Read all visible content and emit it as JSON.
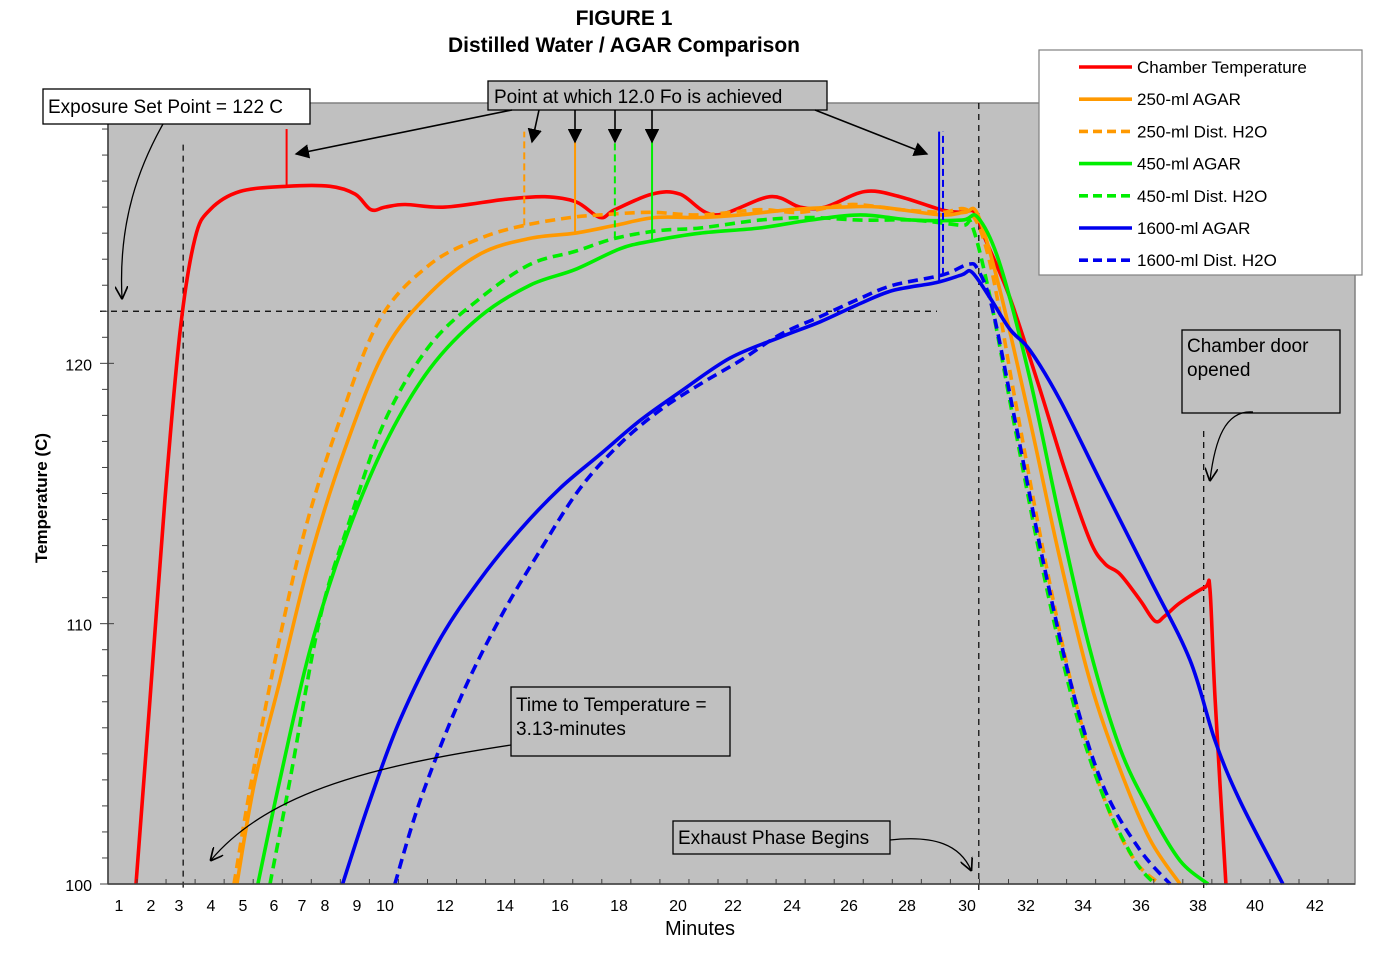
{
  "chart_data": {
    "type": "line",
    "title": "FIGURE 1",
    "subtitle": "Distilled Water / AGAR Comparison",
    "xlabel": "Minutes",
    "ylabel": "Temperature (C)",
    "xlim": [
      0.6,
      43.5
    ],
    "ylim": [
      100,
      130
    ],
    "x_tick_labels": [
      {
        "label": "1",
        "value": 1
      },
      {
        "label": "2",
        "value": 2
      },
      {
        "label": "3",
        "value": 3
      },
      {
        "label": "4",
        "value": 4
      },
      {
        "label": "5",
        "value": 5
      },
      {
        "label": "6",
        "value": 6
      },
      {
        "label": "7",
        "value": 7
      },
      {
        "label": "8",
        "value": 8
      },
      {
        "label": "9",
        "value": 9
      },
      {
        "label": "10",
        "value": 10
      },
      {
        "label": "12",
        "value": 12
      },
      {
        "label": "14",
        "value": 14
      },
      {
        "label": "16",
        "value": 16
      },
      {
        "label": "18",
        "value": 18
      },
      {
        "label": "20",
        "value": 20
      },
      {
        "label": "22",
        "value": 22
      },
      {
        "label": "24",
        "value": 24
      },
      {
        "label": "26",
        "value": 26
      },
      {
        "label": "28",
        "value": 28
      },
      {
        "label": "30",
        "value": 30
      },
      {
        "label": "32",
        "value": 32
      },
      {
        "label": "34",
        "value": 34
      },
      {
        "label": "36",
        "value": 36
      },
      {
        "label": "38",
        "value": 38
      },
      {
        "label": "40",
        "value": 40
      },
      {
        "label": "42",
        "value": 42
      }
    ],
    "y_tick_labels": [
      {
        "label": "100",
        "value": 100
      },
      {
        "label": "110",
        "value": 110
      },
      {
        "label": "120",
        "value": 120
      }
    ],
    "y_minor_tick_step": 1,
    "grid": false,
    "plot_background": "#c0c0c0",
    "legend_position": "top-right",
    "series": [
      {
        "name": "Chamber Temperature",
        "color": "#ff0000",
        "dash": false,
        "points": [
          [
            1.53,
            100
          ],
          [
            1.97,
            107.1
          ],
          [
            2.5,
            114.8
          ],
          [
            3.04,
            121.3
          ],
          [
            3.5,
            124.8
          ],
          [
            3.97,
            125.9
          ],
          [
            4.9,
            126.6
          ],
          [
            6.45,
            126.8
          ],
          [
            8.16,
            126.8
          ],
          [
            8.94,
            126.5
          ],
          [
            9.5,
            125.9
          ],
          [
            10,
            126.0
          ],
          [
            10.67,
            126.1
          ],
          [
            12,
            126.0
          ],
          [
            14,
            126.3
          ],
          [
            15.45,
            126.4
          ],
          [
            16.55,
            126.2
          ],
          [
            17.36,
            125.6
          ],
          [
            17.86,
            125.9
          ],
          [
            19.12,
            126.5
          ],
          [
            20.07,
            126.5
          ],
          [
            21.35,
            125.7
          ],
          [
            23.25,
            126.4
          ],
          [
            24.28,
            126.0
          ],
          [
            25.16,
            126.0
          ],
          [
            26.55,
            126.6
          ],
          [
            27.76,
            126.4
          ],
          [
            29.14,
            125.9
          ],
          [
            29.83,
            125.8
          ],
          [
            30.27,
            125.8
          ],
          [
            30.61,
            124.8
          ],
          [
            31.46,
            122.5
          ],
          [
            32.49,
            119.0
          ],
          [
            33.37,
            115.9
          ],
          [
            34.24,
            113.2
          ],
          [
            34.76,
            112.3
          ],
          [
            35.28,
            111.9
          ],
          [
            35.97,
            110.9
          ],
          [
            36.49,
            110.1
          ],
          [
            36.84,
            110.3
          ],
          [
            37.37,
            110.8
          ],
          [
            38.25,
            111.4
          ],
          [
            38.42,
            111.3
          ],
          [
            38.6,
            107.1
          ],
          [
            38.98,
            100
          ]
        ]
      },
      {
        "name": "250-ml AGAR",
        "color": "#ff9900",
        "dash": false,
        "points": [
          [
            4.81,
            100
          ],
          [
            5.39,
            104
          ],
          [
            6.21,
            107.8
          ],
          [
            7.35,
            112.5
          ],
          [
            8.62,
            116.7
          ],
          [
            10,
            120.5
          ],
          [
            11.5,
            122.7
          ],
          [
            13.17,
            124.2
          ],
          [
            14.91,
            124.8
          ],
          [
            16.51,
            125.0
          ],
          [
            17.86,
            125.3
          ],
          [
            19.22,
            125.6
          ],
          [
            20.8,
            125.6
          ],
          [
            22.24,
            125.7
          ],
          [
            23.93,
            125.9
          ],
          [
            25.68,
            126.0
          ],
          [
            27.07,
            126.0
          ],
          [
            29.14,
            125.7
          ],
          [
            29.93,
            125.8
          ],
          [
            30.37,
            125.7
          ],
          [
            31.12,
            122.8
          ],
          [
            32.14,
            117.8
          ],
          [
            33.19,
            112.5
          ],
          [
            34.24,
            107.8
          ],
          [
            35.28,
            104.4
          ],
          [
            36.32,
            101.7
          ],
          [
            37.37,
            100
          ]
        ]
      },
      {
        "name": "250-ml Dist. H2O",
        "color": "#ff9900",
        "dash": true,
        "points": [
          [
            4.72,
            100
          ],
          [
            5.22,
            103.6
          ],
          [
            6.04,
            108.6
          ],
          [
            7.13,
            113.6
          ],
          [
            8.46,
            117.8
          ],
          [
            9.82,
            121.7
          ],
          [
            11.5,
            123.8
          ],
          [
            13.17,
            124.8
          ],
          [
            14.7,
            125.3
          ],
          [
            16.36,
            125.6
          ],
          [
            17.36,
            125.7
          ],
          [
            19.05,
            125.8
          ],
          [
            20.8,
            125.7
          ],
          [
            22.9,
            125.9
          ],
          [
            24.28,
            125.8
          ],
          [
            26.04,
            126.1
          ],
          [
            27.76,
            125.9
          ],
          [
            29.14,
            125.8
          ],
          [
            30.1,
            125.8
          ],
          [
            30.79,
            123.8
          ],
          [
            31.63,
            118.6
          ],
          [
            32.66,
            112.5
          ],
          [
            33.72,
            107.1
          ],
          [
            34.76,
            103.2
          ],
          [
            35.79,
            100.9
          ],
          [
            36.67,
            100
          ]
        ]
      },
      {
        "name": "450-ml AGAR",
        "color": "#00ee00",
        "dash": false,
        "points": [
          [
            5.48,
            100
          ],
          [
            6.21,
            104
          ],
          [
            7.35,
            109.0
          ],
          [
            8.62,
            113.2
          ],
          [
            10,
            116.9
          ],
          [
            11.5,
            119.8
          ],
          [
            13.17,
            121.8
          ],
          [
            14.91,
            123.0
          ],
          [
            16.51,
            123.6
          ],
          [
            18.03,
            124.4
          ],
          [
            19.12,
            124.7
          ],
          [
            20.8,
            125.0
          ],
          [
            22.9,
            125.2
          ],
          [
            24.63,
            125.5
          ],
          [
            26.39,
            125.7
          ],
          [
            28.21,
            125.5
          ],
          [
            29.83,
            125.5
          ],
          [
            30.37,
            125.6
          ],
          [
            31.12,
            123.8
          ],
          [
            32.14,
            119.4
          ],
          [
            33.19,
            114.0
          ],
          [
            34.24,
            109.0
          ],
          [
            35.28,
            105.2
          ],
          [
            36.32,
            102.8
          ],
          [
            37.37,
            100.9
          ],
          [
            38.35,
            100
          ]
        ]
      },
      {
        "name": "450-ml Dist. H2O",
        "color": "#00ee00",
        "dash": true,
        "points": [
          [
            5.87,
            100
          ],
          [
            6.57,
            104
          ],
          [
            7.78,
            110.2
          ],
          [
            8.78,
            114.0
          ],
          [
            10,
            117.8
          ],
          [
            11.5,
            120.7
          ],
          [
            13.17,
            122.5
          ],
          [
            14.91,
            123.8
          ],
          [
            16.51,
            124.3
          ],
          [
            17.86,
            124.8
          ],
          [
            19.37,
            125.1
          ],
          [
            20.8,
            125.2
          ],
          [
            22.9,
            125.5
          ],
          [
            24.63,
            125.6
          ],
          [
            26.39,
            125.5
          ],
          [
            28.21,
            125.5
          ],
          [
            29.83,
            125.3
          ],
          [
            30.17,
            125.3
          ],
          [
            30.79,
            122.5
          ],
          [
            31.63,
            117.5
          ],
          [
            32.66,
            111.7
          ],
          [
            33.72,
            106.7
          ],
          [
            34.76,
            103.2
          ],
          [
            35.79,
            100.9
          ],
          [
            36.49,
            100
          ]
        ]
      },
      {
        "name": "1600-ml AGAR",
        "color": "#0000ee",
        "dash": false,
        "points": [
          [
            8.55,
            100
          ],
          [
            9.46,
            103.2
          ],
          [
            10.5,
            106.3
          ],
          [
            11.83,
            109.4
          ],
          [
            13.17,
            111.7
          ],
          [
            14.55,
            113.6
          ],
          [
            16,
            115.2
          ],
          [
            17.36,
            116.5
          ],
          [
            18.71,
            117.8
          ],
          [
            20.07,
            118.9
          ],
          [
            21.89,
            120.2
          ],
          [
            23.59,
            121.0
          ],
          [
            25.0,
            121.6
          ],
          [
            26.39,
            122.3
          ],
          [
            27.52,
            122.8
          ],
          [
            28.97,
            123.1
          ],
          [
            29.83,
            123.4
          ],
          [
            30.17,
            123.5
          ],
          [
            30.79,
            122.5
          ],
          [
            31.46,
            121.3
          ],
          [
            32.14,
            120.5
          ],
          [
            33.19,
            118.6
          ],
          [
            34.59,
            115.5
          ],
          [
            36.32,
            111.7
          ],
          [
            37.72,
            108.6
          ],
          [
            38.6,
            105.5
          ],
          [
            39.47,
            103.2
          ],
          [
            40.93,
            100
          ]
        ]
      },
      {
        "name": "1600-ml Dist. H2O",
        "color": "#0000ee",
        "dash": true,
        "points": [
          [
            10.33,
            100
          ],
          [
            11.17,
            103.2
          ],
          [
            12.5,
            107.1
          ],
          [
            13.83,
            110.2
          ],
          [
            15.27,
            112.8
          ],
          [
            16.68,
            115.2
          ],
          [
            18.03,
            116.9
          ],
          [
            19.39,
            118.2
          ],
          [
            20.8,
            119.2
          ],
          [
            22.24,
            120.1
          ],
          [
            23.59,
            121.1
          ],
          [
            25.0,
            121.8
          ],
          [
            26.39,
            122.5
          ],
          [
            27.52,
            123.0
          ],
          [
            29.2,
            123.4
          ],
          [
            30.03,
            123.8
          ],
          [
            30.37,
            123.6
          ],
          [
            30.86,
            122.1
          ],
          [
            31.63,
            117.8
          ],
          [
            32.66,
            112.1
          ],
          [
            33.72,
            107.1
          ],
          [
            34.76,
            103.6
          ],
          [
            35.97,
            101.3
          ],
          [
            37.02,
            100
          ]
        ]
      }
    ],
    "fo_markers": [
      {
        "series": "Chamber Temperature",
        "minute": 6.45,
        "color": "#ff0000",
        "dash": false,
        "from": 126.8,
        "to": 129.0
      },
      {
        "series": "250-ml Dist. H2O",
        "minute": 14.7,
        "color": "#ff9900",
        "dash": true,
        "from": 125.3,
        "to": 128.9
      },
      {
        "series": "250-ml AGAR",
        "minute": 16.51,
        "color": "#ff9900",
        "dash": false,
        "from": 125.0,
        "to": 128.9
      },
      {
        "series": "450-ml Dist. H2O",
        "minute": 17.86,
        "color": "#00ee00",
        "dash": true,
        "from": 124.8,
        "to": 128.9
      },
      {
        "series": "450-ml AGAR",
        "minute": 19.12,
        "color": "#00ee00",
        "dash": false,
        "from": 124.7,
        "to": 128.9
      },
      {
        "series": "1600-ml AGAR",
        "minute": 29.07,
        "color": "#0000ee",
        "dash": false,
        "from": 123.1,
        "to": 128.9
      },
      {
        "series": "1600-ml Dist. H2O",
        "minute": 29.2,
        "color": "#0000ee",
        "dash": true,
        "from": 123.4,
        "to": 128.9
      }
    ],
    "reference_lines": [
      {
        "name": "exposure-set-point-line",
        "orientation": "horizontal",
        "value": 122,
        "x_to": 29.0
      },
      {
        "name": "time-to-temperature-line",
        "orientation": "vertical",
        "value": 3.13,
        "y_to": 128.4
      },
      {
        "name": "exhaust-phase-line",
        "orientation": "vertical",
        "value": 30.4,
        "y_to": 130
      },
      {
        "name": "door-opened-line",
        "orientation": "vertical",
        "value": 38.2,
        "y_to": 117.4
      }
    ],
    "annotations": [
      {
        "name": "exposure-set-point",
        "text": "Exposure Set Point = 122 C"
      },
      {
        "name": "fo-achieved",
        "text": "Point at which 12.0 Fo is achieved"
      },
      {
        "name": "time-to-temperature",
        "lines": [
          "Time to Temperature =",
          "3.13-minutes"
        ]
      },
      {
        "name": "exhaust-phase",
        "text": "Exhaust Phase Begins"
      },
      {
        "name": "chamber-door",
        "lines": [
          "Chamber door",
          "opened"
        ]
      }
    ]
  }
}
